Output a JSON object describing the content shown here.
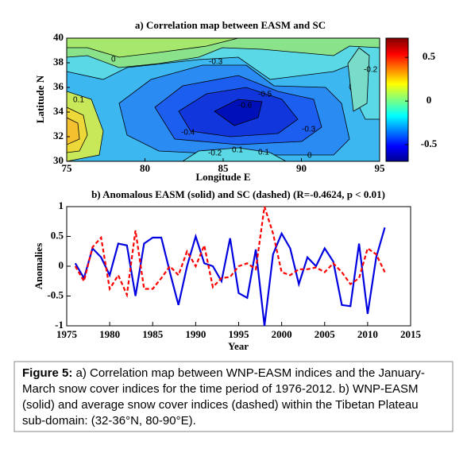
{
  "chart_data": [
    {
      "type": "contour",
      "title": "a) Correlation map between EASM and SC",
      "xlabel": "Longitude E",
      "ylabel": "Latitude N",
      "xlim": [
        75,
        95
      ],
      "xticks": [
        75,
        80,
        85,
        90,
        95
      ],
      "ylim": [
        30,
        40
      ],
      "yticks": [
        30,
        32,
        34,
        36,
        38,
        40
      ],
      "colorbar": {
        "lim": [
          -0.69,
          0.72
        ],
        "ticks": [
          -0.5,
          0,
          0.5
        ]
      },
      "contour_labels": [
        "0",
        "-0.3",
        "-0.2",
        "0.1",
        "-0.4",
        "-0.6",
        "-0.5",
        "-0.3",
        "-0.2",
        "0.1",
        "0.1",
        "0"
      ]
    },
    {
      "type": "line",
      "title": "b) Anomalous EASM (solid) and SC (dashed) (R=-0.4624, p < 0.01)",
      "xlabel": "Year",
      "ylabel": "Anomalies",
      "xlim": [
        1975,
        2015
      ],
      "xticks": [
        1975,
        1980,
        1985,
        1990,
        1995,
        2000,
        2005,
        2010,
        2015
      ],
      "ylim": [
        -1,
        1
      ],
      "yticks": [
        -1,
        -0.5,
        0,
        0.5,
        1
      ],
      "x": [
        1976,
        1977,
        1978,
        1979,
        1980,
        1981,
        1982,
        1983,
        1984,
        1985,
        1986,
        1987,
        1988,
        1989,
        1990,
        1991,
        1992,
        1993,
        1994,
        1995,
        1996,
        1997,
        1998,
        1999,
        2000,
        2001,
        2002,
        2003,
        2004,
        2005,
        2006,
        2007,
        2008,
        2009,
        2010,
        2011,
        2012
      ],
      "series": [
        {
          "color": "#0000e0",
          "style": "solid",
          "values": [
            0.05,
            -0.2,
            0.3,
            0.15,
            -0.15,
            0.38,
            0.35,
            -0.5,
            0.38,
            0.48,
            0.48,
            -0.1,
            -0.65,
            0.0,
            0.5,
            0.05,
            0.0,
            -0.25,
            0.47,
            -0.45,
            -0.53,
            0.28,
            -1.0,
            0.2,
            0.55,
            0.3,
            -0.3,
            0.15,
            0.0,
            0.3,
            0.08,
            -0.65,
            -0.67,
            0.38,
            -0.8,
            0.15,
            0.65
          ]
        },
        {
          "color": "#ff0000",
          "style": "dashed",
          "values": [
            0.0,
            -0.25,
            0.32,
            0.48,
            -0.38,
            -0.15,
            -0.48,
            0.6,
            -0.38,
            -0.38,
            -0.2,
            0.0,
            -0.15,
            0.25,
            0.0,
            0.35,
            -0.35,
            -0.2,
            -0.18,
            0.0,
            0.05,
            -0.05,
            1.0,
            0.55,
            -0.1,
            -0.15,
            -0.05,
            -0.05,
            -0.02,
            -0.1,
            0.05,
            -0.1,
            -0.3,
            -0.2,
            0.3,
            0.2,
            -0.1
          ]
        }
      ]
    }
  ],
  "caption": {
    "label": "Figure 5:",
    "lines": [
      " a) Correlation map between WNP-EASM indices and the January-",
      "March snow cover indices for the time period of 1976-2012.    b) WNP-EASM",
      "(solid) and average snow cover indices (dashed) within the Tibetan Plateau",
      "sub-domain: (32-36°N, 80-90°E)."
    ]
  }
}
